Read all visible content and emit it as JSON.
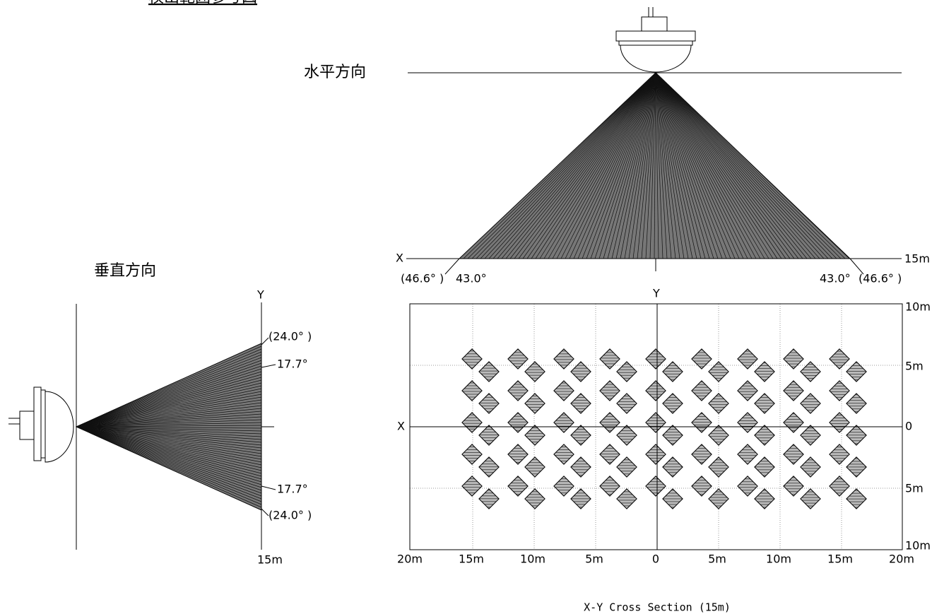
{
  "title": "検出範囲参考図",
  "horizontal": {
    "label": "水平方向",
    "axis_x": "X",
    "range": "15m",
    "left_outer": "(46.6° )",
    "left_inner": "43.0°",
    "right_inner": "43.0°",
    "right_outer": "(46.6° )"
  },
  "vertical": {
    "label": "垂直方向",
    "axis_y": "Y",
    "range": "15m",
    "top_outer": "(24.0° )",
    "top_inner": "17.7°",
    "bottom_inner": "17.7°",
    "bottom_outer": "(24.0° )"
  },
  "cross_section": {
    "axis_x": "X",
    "axis_y": "Y",
    "y_labels": [
      "10m",
      "5m",
      "0",
      "5m",
      "10m"
    ],
    "x_labels": [
      "20m",
      "15m",
      "10m",
      "5m",
      "0",
      "5m",
      "10m",
      "15m",
      "20m"
    ],
    "caption": "X-Y Cross Section (15m)"
  }
}
